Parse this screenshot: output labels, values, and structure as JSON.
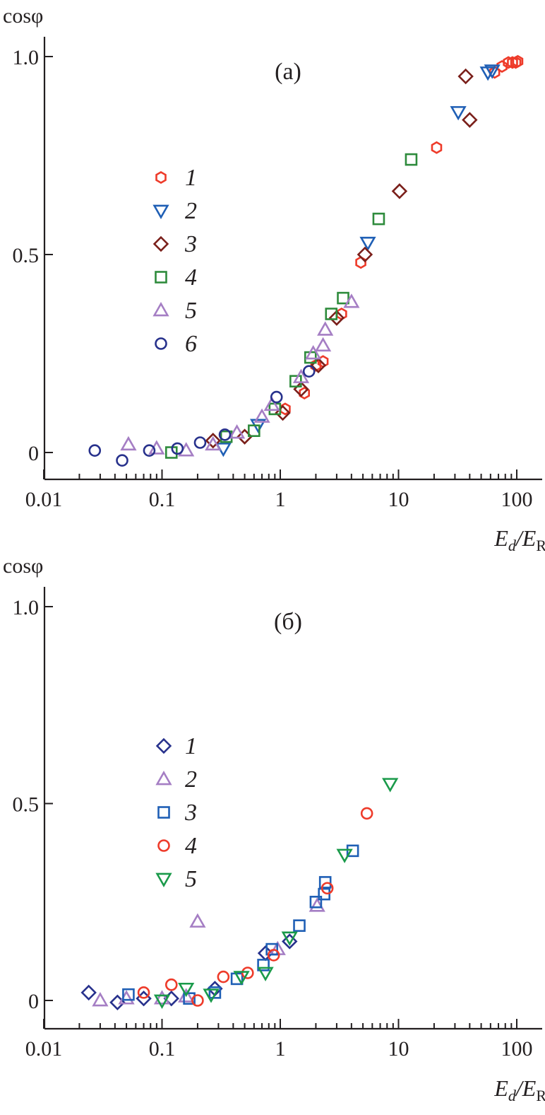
{
  "colors": {
    "red": "#ee3b2a",
    "blue": "#1f5fb5",
    "maroon": "#7a1f1a",
    "green": "#2e8b3c",
    "violet": "#a57ec4",
    "navy": "#27318c",
    "emerald": "#1a9a4a",
    "axis": "#231f20"
  },
  "chart_data": [
    {
      "type": "scatter",
      "panel_label": "(a)",
      "ylabel": "cosφ",
      "xlabel_main": "E",
      "xlabel_sub1": "d",
      "xlabel_sep": "/E",
      "xlabel_sub2": "R",
      "xscale": "log",
      "xlim": [
        0.01,
        160
      ],
      "ylim": [
        -0.07,
        1.06
      ],
      "xticks": [
        0.01,
        0.1,
        1,
        10,
        100
      ],
      "xtick_labels": [
        "0.01",
        "0.1",
        "1",
        "10",
        "100"
      ],
      "yticks": [
        0,
        0.5,
        1.0
      ],
      "ytick_labels": [
        "0",
        "0.5",
        "1.0"
      ],
      "legend_position": "upper-left",
      "series": [
        {
          "name": "1",
          "marker": "hexagon",
          "color": "#ee3b2a",
          "points": [
            [
              1.1,
              0.11
            ],
            [
              1.6,
              0.15
            ],
            [
              2.0,
              0.22
            ],
            [
              2.3,
              0.23
            ],
            [
              3.3,
              0.35
            ],
            [
              4.8,
              0.48
            ],
            [
              21,
              0.77
            ],
            [
              65,
              0.96
            ],
            [
              75,
              0.975
            ],
            [
              85,
              0.985
            ],
            [
              92,
              0.985
            ],
            [
              98,
              0.985
            ],
            [
              102,
              0.988
            ]
          ]
        },
        {
          "name": "2",
          "marker": "triangle-down",
          "color": "#1f5fb5",
          "points": [
            [
              0.33,
              0.01
            ],
            [
              0.65,
              0.07
            ],
            [
              5.5,
              0.53
            ],
            [
              32,
              0.86
            ],
            [
              57,
              0.96
            ],
            [
              62,
              0.965
            ]
          ]
        },
        {
          "name": "3",
          "marker": "diamond",
          "color": "#7a1f1a",
          "points": [
            [
              0.27,
              0.03
            ],
            [
              0.5,
              0.04
            ],
            [
              1.05,
              0.1
            ],
            [
              1.5,
              0.16
            ],
            [
              2.1,
              0.22
            ],
            [
              3.0,
              0.34
            ],
            [
              5.2,
              0.5
            ],
            [
              10.2,
              0.66
            ],
            [
              37,
              0.95
            ],
            [
              40,
              0.84
            ]
          ]
        },
        {
          "name": "4",
          "marker": "square",
          "color": "#2e8b3c",
          "points": [
            [
              0.12,
              0.0
            ],
            [
              0.35,
              0.04
            ],
            [
              0.6,
              0.055
            ],
            [
              0.9,
              0.11
            ],
            [
              1.35,
              0.18
            ],
            [
              1.8,
              0.24
            ],
            [
              2.7,
              0.35
            ],
            [
              3.4,
              0.39
            ],
            [
              6.8,
              0.59
            ],
            [
              12.8,
              0.74
            ]
          ]
        },
        {
          "name": "5",
          "marker": "triangle-up",
          "color": "#a57ec4",
          "points": [
            [
              0.052,
              0.02
            ],
            [
              0.09,
              0.01
            ],
            [
              0.16,
              0.005
            ],
            [
              0.27,
              0.02
            ],
            [
              0.43,
              0.05
            ],
            [
              0.7,
              0.09
            ],
            [
              0.85,
              0.12
            ],
            [
              1.5,
              0.19
            ],
            [
              1.9,
              0.25
            ],
            [
              2.3,
              0.27
            ],
            [
              2.4,
              0.31
            ],
            [
              4.0,
              0.38
            ]
          ]
        },
        {
          "name": "6",
          "marker": "circle",
          "color": "#27318c",
          "points": [
            [
              0.027,
              0.005
            ],
            [
              0.046,
              -0.02
            ],
            [
              0.078,
              0.005
            ],
            [
              0.135,
              0.01
            ],
            [
              0.21,
              0.025
            ],
            [
              0.34,
              0.045
            ],
            [
              0.93,
              0.14
            ],
            [
              1.75,
              0.205
            ]
          ]
        }
      ]
    },
    {
      "type": "scatter",
      "panel_label": "(б)",
      "ylabel": "cosφ",
      "xlabel_main": "E",
      "xlabel_sub1": "d",
      "xlabel_sep": "/E",
      "xlabel_sub2": "R",
      "xscale": "log",
      "xlim": [
        0.01,
        160
      ],
      "ylim": [
        -0.07,
        1.06
      ],
      "xticks": [
        0.01,
        0.1,
        1,
        10,
        100
      ],
      "xtick_labels": [
        "0.01",
        "0.1",
        "1",
        "10",
        "100"
      ],
      "yticks": [
        0,
        0.5,
        1.0
      ],
      "ytick_labels": [
        "0",
        "0.5",
        "1.0"
      ],
      "legend_position": "middle-left",
      "series": [
        {
          "name": "1",
          "marker": "diamond",
          "color": "#27318c",
          "points": [
            [
              0.024,
              0.02
            ],
            [
              0.042,
              -0.005
            ],
            [
              0.07,
              0.005
            ],
            [
              0.12,
              0.005
            ],
            [
              0.28,
              0.03
            ],
            [
              0.75,
              0.12
            ],
            [
              1.2,
              0.15
            ]
          ]
        },
        {
          "name": "2",
          "marker": "triangle-up",
          "color": "#a57ec4",
          "points": [
            [
              0.03,
              0.0
            ],
            [
              0.05,
              0.005
            ],
            [
              0.1,
              0.005
            ],
            [
              0.16,
              0.01
            ],
            [
              0.2,
              0.2
            ],
            [
              0.95,
              0.13
            ],
            [
              2.05,
              0.24
            ]
          ]
        },
        {
          "name": "3",
          "marker": "square",
          "color": "#1f5fb5",
          "points": [
            [
              0.052,
              0.015
            ],
            [
              0.17,
              0.005
            ],
            [
              0.28,
              0.02
            ],
            [
              0.43,
              0.055
            ],
            [
              0.72,
              0.09
            ],
            [
              0.85,
              0.13
            ],
            [
              1.45,
              0.19
            ],
            [
              2.0,
              0.25
            ],
            [
              2.35,
              0.27
            ],
            [
              2.4,
              0.3
            ],
            [
              4.1,
              0.38
            ]
          ]
        },
        {
          "name": "4",
          "marker": "circle",
          "color": "#ee3b2a",
          "points": [
            [
              0.07,
              0.02
            ],
            [
              0.12,
              0.04
            ],
            [
              0.2,
              0.0
            ],
            [
              0.33,
              0.06
            ],
            [
              0.53,
              0.07
            ],
            [
              0.88,
              0.115
            ],
            [
              2.5,
              0.285
            ],
            [
              5.4,
              0.475
            ]
          ]
        },
        {
          "name": "5",
          "marker": "triangle-down",
          "color": "#1a9a4a",
          "points": [
            [
              0.1,
              0.0
            ],
            [
              0.16,
              0.03
            ],
            [
              0.26,
              0.015
            ],
            [
              0.47,
              0.06
            ],
            [
              0.75,
              0.07
            ],
            [
              1.2,
              0.16
            ],
            [
              3.5,
              0.37
            ],
            [
              8.5,
              0.55
            ]
          ]
        }
      ]
    }
  ]
}
